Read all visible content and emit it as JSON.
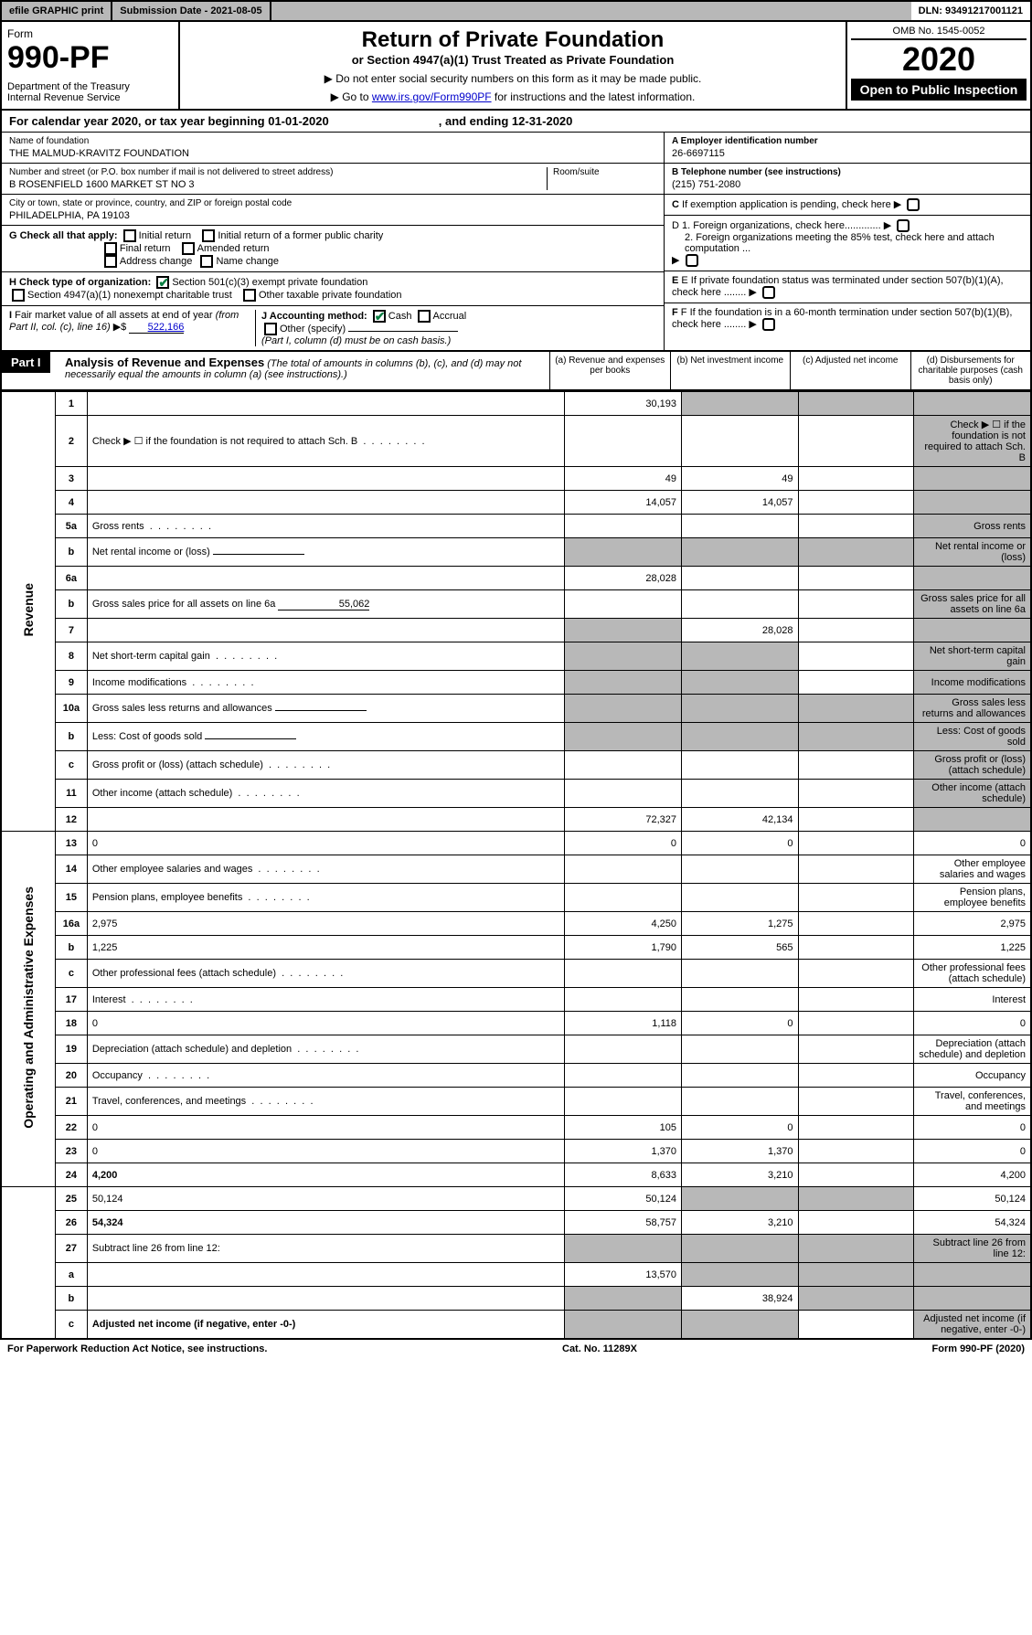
{
  "topbar": {
    "efile": "efile GRAPHIC print",
    "subdate_label": "Submission Date - 2021-08-05",
    "dln": "DLN: 93491217001121"
  },
  "header": {
    "form_word": "Form",
    "form_no": "990-PF",
    "dept": "Department of the Treasury\nInternal Revenue Service",
    "title": "Return of Private Foundation",
    "subtitle": "or Section 4947(a)(1) Trust Treated as Private Foundation",
    "note1": "▶ Do not enter social security numbers on this form as it may be made public.",
    "note2_pre": "▶ Go to ",
    "note2_link": "www.irs.gov/Form990PF",
    "note2_post": " for instructions and the latest information.",
    "omb": "OMB No. 1545-0052",
    "year": "2020",
    "open": "Open to Public Inspection"
  },
  "cal": {
    "text": "For calendar year 2020, or tax year beginning 01-01-2020",
    "ending": ", and ending 12-31-2020"
  },
  "info": {
    "name_lbl": "Name of foundation",
    "name": "THE MALMUD-KRAVITZ FOUNDATION",
    "addr_lbl": "Number and street (or P.O. box number if mail is not delivered to street address)",
    "addr": "B ROSENFIELD 1600 MARKET ST NO 3",
    "room_lbl": "Room/suite",
    "city_lbl": "City or town, state or province, country, and ZIP or foreign postal code",
    "city": "PHILADELPHIA, PA  19103",
    "ein_lbl": "A Employer identification number",
    "ein": "26-6697115",
    "phone_lbl": "B Telephone number (see instructions)",
    "phone": "(215) 751-2080",
    "c_lbl": "C If exemption application is pending, check here",
    "g_lbl": "G Check all that apply:",
    "g_items": [
      "Initial return",
      "Initial return of a former public charity",
      "Final return",
      "Amended return",
      "Address change",
      "Name change"
    ],
    "d1": "D 1. Foreign organizations, check here.............",
    "d2": "2. Foreign organizations meeting the 85% test, check here and attach computation ...",
    "h_lbl": "H Check type of organization:",
    "h1": "Section 501(c)(3) exempt private foundation",
    "h2": "Section 4947(a)(1) nonexempt charitable trust",
    "h3": "Other taxable private foundation",
    "e_lbl": "E If private foundation status was terminated under section 507(b)(1)(A), check here ........",
    "i_lbl": "I Fair market value of all assets at end of year (from Part II, col. (c), line 16) ▶$",
    "i_val": "522,166",
    "j_lbl": "J Accounting method:",
    "j_cash": "Cash",
    "j_accrual": "Accrual",
    "j_other": "Other (specify)",
    "j_note": "(Part I, column (d) must be on cash basis.)",
    "f_lbl": "F If the foundation is in a 60-month termination under section 507(b)(1)(B), check here ........"
  },
  "part1": {
    "label": "Part I",
    "title": "Analysis of Revenue and Expenses",
    "note": "(The total of amounts in columns (b), (c), and (d) may not necessarily equal the amounts in column (a) (see instructions).)",
    "col_a": "(a) Revenue and expenses per books",
    "col_b": "(b) Net investment income",
    "col_c": "(c) Adjusted net income",
    "col_d": "(d) Disbursements for charitable purposes (cash basis only)"
  },
  "rev_label": "Revenue",
  "exp_label": "Operating and Administrative Expenses",
  "rows": [
    {
      "n": "1",
      "d": "",
      "a": "30,193",
      "b": "",
      "c": ""
    },
    {
      "n": "2",
      "d": "Check ▶ ☐ if the foundation is not required to attach Sch. B",
      "dots": true
    },
    {
      "n": "3",
      "d": "",
      "a": "49",
      "b": "49",
      "c": ""
    },
    {
      "n": "4",
      "d": "",
      "a": "14,057",
      "b": "14,057",
      "c": ""
    },
    {
      "n": "5a",
      "d": "Gross rents",
      "dots": true
    },
    {
      "n": "b",
      "d": "Net rental income or (loss)",
      "inline": true
    },
    {
      "n": "6a",
      "d": "",
      "a": "28,028",
      "b": "",
      "c": ""
    },
    {
      "n": "b",
      "d": "Gross sales price for all assets on line 6a",
      "inline": true,
      "inline_val": "55,062"
    },
    {
      "n": "7",
      "d": "",
      "a": "",
      "b": "28,028",
      "c": ""
    },
    {
      "n": "8",
      "d": "Net short-term capital gain",
      "dots": true
    },
    {
      "n": "9",
      "d": "Income modifications",
      "dots": true
    },
    {
      "n": "10a",
      "d": "Gross sales less returns and allowances",
      "inline": true
    },
    {
      "n": "b",
      "d": "Less: Cost of goods sold",
      "inline": true
    },
    {
      "n": "c",
      "d": "Gross profit or (loss) (attach schedule)",
      "dots": true
    },
    {
      "n": "11",
      "d": "Other income (attach schedule)",
      "dots": true
    },
    {
      "n": "12",
      "d": "",
      "bold": true,
      "a": "72,327",
      "b": "42,134",
      "c": ""
    },
    {
      "n": "13",
      "d": "0",
      "a": "0",
      "b": "0",
      "c": ""
    },
    {
      "n": "14",
      "d": "Other employee salaries and wages",
      "dots": true
    },
    {
      "n": "15",
      "d": "Pension plans, employee benefits",
      "dots": true
    },
    {
      "n": "16a",
      "d": "2,975",
      "a": "4,250",
      "b": "1,275",
      "c": ""
    },
    {
      "n": "b",
      "d": "1,225",
      "a": "1,790",
      "b": "565",
      "c": ""
    },
    {
      "n": "c",
      "d": "Other professional fees (attach schedule)",
      "dots": true
    },
    {
      "n": "17",
      "d": "Interest",
      "dots": true
    },
    {
      "n": "18",
      "d": "0",
      "a": "1,118",
      "b": "0",
      "c": ""
    },
    {
      "n": "19",
      "d": "Depreciation (attach schedule) and depletion",
      "dots": true
    },
    {
      "n": "20",
      "d": "Occupancy",
      "dots": true
    },
    {
      "n": "21",
      "d": "Travel, conferences, and meetings",
      "dots": true
    },
    {
      "n": "22",
      "d": "0",
      "a": "105",
      "b": "0",
      "c": ""
    },
    {
      "n": "23",
      "d": "0",
      "a": "1,370",
      "b": "1,370",
      "c": ""
    },
    {
      "n": "24",
      "d": "4,200",
      "bold": true,
      "a": "8,633",
      "b": "3,210",
      "c": ""
    },
    {
      "n": "25",
      "d": "50,124",
      "a": "50,124",
      "b": "",
      "c": ""
    },
    {
      "n": "26",
      "d": "54,324",
      "bold": true,
      "a": "58,757",
      "b": "3,210",
      "c": ""
    },
    {
      "n": "27",
      "d": "Subtract line 26 from line 12:"
    },
    {
      "n": "a",
      "d": "",
      "bold": true,
      "a": "13,570",
      "b": "",
      "c": ""
    },
    {
      "n": "b",
      "d": "",
      "bold": true,
      "a": "",
      "b": "38,924",
      "c": ""
    },
    {
      "n": "c",
      "d": "Adjusted net income (if negative, enter -0-)",
      "bold": true
    }
  ],
  "footer": {
    "left": "For Paperwork Reduction Act Notice, see instructions.",
    "mid": "Cat. No. 11289X",
    "right": "Form 990-PF (2020)"
  },
  "colors": {
    "grey": "#b8b8b8",
    "link": "#0000cc",
    "check": "#0b8043"
  }
}
